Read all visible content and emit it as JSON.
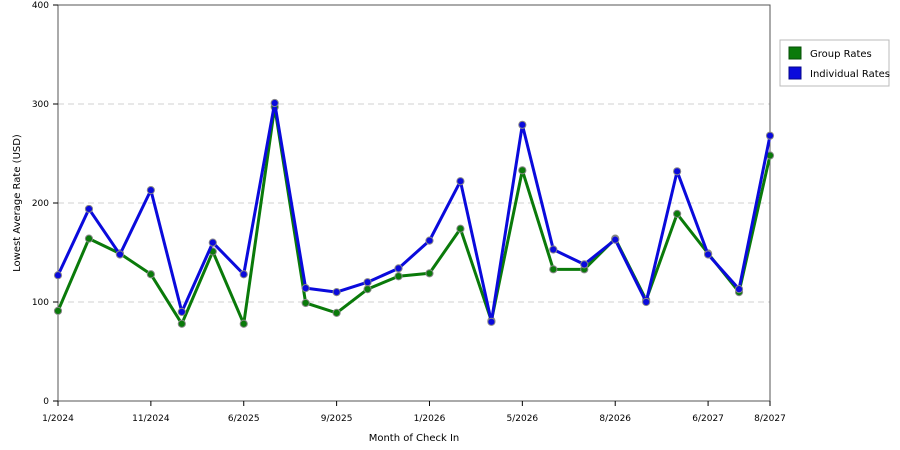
{
  "chart_data": {
    "type": "line",
    "title": "",
    "xlabel": "Month of Check In",
    "ylabel": "Lowest Average Rate (USD)",
    "ylim": [
      0,
      400
    ],
    "yticks": [
      0,
      100,
      200,
      300,
      400
    ],
    "grid": true,
    "legend_position": "right",
    "x_tick_labels": [
      {
        "index": 0,
        "label": "1/2024"
      },
      {
        "index": 3,
        "label": "11/2024"
      },
      {
        "index": 6,
        "label": "6/2025"
      },
      {
        "index": 9,
        "label": "9/2025"
      },
      {
        "index": 12,
        "label": "1/2026"
      },
      {
        "index": 15,
        "label": "5/2026"
      },
      {
        "index": 18,
        "label": "8/2026"
      },
      {
        "index": 21,
        "label": "6/2027"
      },
      {
        "index": 23,
        "label": "8/2027"
      }
    ],
    "point_count": 24,
    "series": [
      {
        "name": "Group Rates",
        "color": "#0a7a0a",
        "values": [
          91,
          164,
          149,
          128,
          78,
          151,
          78,
          297,
          99,
          89,
          113,
          126,
          129,
          174,
          81,
          233,
          133,
          133,
          164,
          102,
          189,
          149,
          110,
          248
        ]
      },
      {
        "name": "Individual Rates",
        "color": "#0a0adc",
        "values": [
          127,
          194,
          148,
          213,
          90,
          160,
          128,
          301,
          114,
          110,
          120,
          134,
          162,
          222,
          80,
          279,
          153,
          138,
          163,
          100,
          232,
          148,
          113,
          268
        ]
      }
    ]
  }
}
